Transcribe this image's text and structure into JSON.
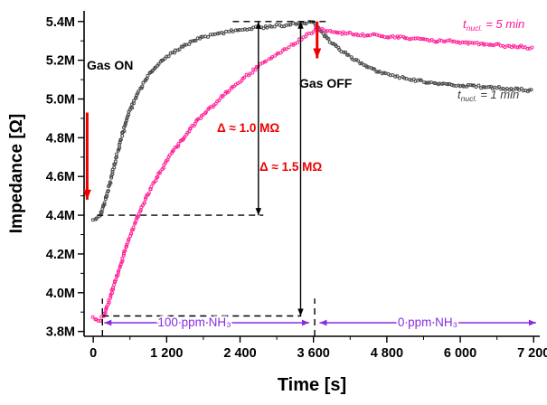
{
  "chart_data": {
    "type": "scatter",
    "title": "",
    "xlabel": "Time [s]",
    "ylabel": "Impedance [Ω]",
    "xlim": [
      -150,
      7300
    ],
    "ylim": [
      3.775,
      5.455
    ],
    "y_unit": "MΩ",
    "grid": false,
    "legend_position": "inline-right",
    "x_ticks": [
      {
        "v": 0,
        "label": "0"
      },
      {
        "v": 1200,
        "label": "1 200"
      },
      {
        "v": 2400,
        "label": "2 400"
      },
      {
        "v": 3600,
        "label": "3 600"
      },
      {
        "v": 4800,
        "label": "4 800"
      },
      {
        "v": 6000,
        "label": "6 000"
      },
      {
        "v": 7200,
        "label": "7 200"
      }
    ],
    "y_ticks": [
      {
        "v": 3.8,
        "label": "3.8M"
      },
      {
        "v": 4.0,
        "label": "4.0M"
      },
      {
        "v": 4.2,
        "label": "4.2M"
      },
      {
        "v": 4.4,
        "label": "4.4M"
      },
      {
        "v": 4.6,
        "label": "4.6M"
      },
      {
        "v": 4.8,
        "label": "4.8M"
      },
      {
        "v": 5.0,
        "label": "5.0M"
      },
      {
        "v": 5.2,
        "label": "5.2M"
      },
      {
        "v": 5.4,
        "label": "5.4M"
      }
    ],
    "x_minor_step": 600,
    "y_minor_step": 0.1,
    "series": [
      {
        "name": "t_nucl. = 1 min",
        "color": "#3b3b3b",
        "points": [
          [
            0,
            4.38
          ],
          [
            60,
            4.38
          ],
          [
            120,
            4.4
          ],
          [
            180,
            4.46
          ],
          [
            240,
            4.52
          ],
          [
            300,
            4.6
          ],
          [
            360,
            4.68
          ],
          [
            420,
            4.75
          ],
          [
            480,
            4.82
          ],
          [
            540,
            4.88
          ],
          [
            600,
            4.94
          ],
          [
            700,
            5.01
          ],
          [
            800,
            5.07
          ],
          [
            900,
            5.12
          ],
          [
            1000,
            5.16
          ],
          [
            1100,
            5.19
          ],
          [
            1200,
            5.22
          ],
          [
            1350,
            5.25
          ],
          [
            1500,
            5.28
          ],
          [
            1650,
            5.3
          ],
          [
            1800,
            5.32
          ],
          [
            1950,
            5.33
          ],
          [
            2100,
            5.34
          ],
          [
            2250,
            5.35
          ],
          [
            2400,
            5.36
          ],
          [
            2550,
            5.36
          ],
          [
            2700,
            5.37
          ],
          [
            2850,
            5.37
          ],
          [
            3000,
            5.38
          ],
          [
            3150,
            5.38
          ],
          [
            3300,
            5.39
          ],
          [
            3450,
            5.39
          ],
          [
            3600,
            5.4
          ],
          [
            3700,
            5.36
          ],
          [
            3800,
            5.32
          ],
          [
            3900,
            5.29
          ],
          [
            4000,
            5.26
          ],
          [
            4150,
            5.23
          ],
          [
            4300,
            5.2
          ],
          [
            4450,
            5.17
          ],
          [
            4600,
            5.15
          ],
          [
            4750,
            5.13
          ],
          [
            4900,
            5.12
          ],
          [
            5050,
            5.11
          ],
          [
            5200,
            5.1
          ],
          [
            5400,
            5.09
          ],
          [
            5600,
            5.08
          ],
          [
            5800,
            5.08
          ],
          [
            6000,
            5.07
          ],
          [
            6200,
            5.07
          ],
          [
            6400,
            5.06
          ],
          [
            6600,
            5.06
          ],
          [
            6800,
            5.05
          ],
          [
            7000,
            5.05
          ],
          [
            7200,
            5.04
          ]
        ]
      },
      {
        "name": "t_nucl. = 5 min",
        "color": "#ff1493",
        "points": [
          [
            0,
            3.87
          ],
          [
            60,
            3.86
          ],
          [
            120,
            3.86
          ],
          [
            180,
            3.89
          ],
          [
            240,
            3.94
          ],
          [
            300,
            4.0
          ],
          [
            360,
            4.06
          ],
          [
            420,
            4.12
          ],
          [
            480,
            4.18
          ],
          [
            540,
            4.24
          ],
          [
            600,
            4.29
          ],
          [
            660,
            4.34
          ],
          [
            720,
            4.39
          ],
          [
            780,
            4.43
          ],
          [
            840,
            4.47
          ],
          [
            900,
            4.51
          ],
          [
            960,
            4.55
          ],
          [
            1020,
            4.58
          ],
          [
            1080,
            4.62
          ],
          [
            1140,
            4.65
          ],
          [
            1200,
            4.68
          ],
          [
            1300,
            4.73
          ],
          [
            1400,
            4.77
          ],
          [
            1500,
            4.81
          ],
          [
            1600,
            4.85
          ],
          [
            1700,
            4.89
          ],
          [
            1800,
            4.92
          ],
          [
            1900,
            4.95
          ],
          [
            2000,
            4.98
          ],
          [
            2100,
            5.01
          ],
          [
            2200,
            5.04
          ],
          [
            2300,
            5.07
          ],
          [
            2400,
            5.09
          ],
          [
            2500,
            5.12
          ],
          [
            2600,
            5.14
          ],
          [
            2700,
            5.17
          ],
          [
            2800,
            5.19
          ],
          [
            2900,
            5.21
          ],
          [
            3000,
            5.23
          ],
          [
            3100,
            5.25
          ],
          [
            3200,
            5.27
          ],
          [
            3300,
            5.29
          ],
          [
            3400,
            5.31
          ],
          [
            3500,
            5.33
          ],
          [
            3600,
            5.35
          ],
          [
            3650,
            5.37
          ],
          [
            3700,
            5.36
          ],
          [
            3800,
            5.35
          ],
          [
            3900,
            5.35
          ],
          [
            4000,
            5.34
          ],
          [
            4200,
            5.34
          ],
          [
            4400,
            5.33
          ],
          [
            4600,
            5.33
          ],
          [
            4800,
            5.32
          ],
          [
            5000,
            5.32
          ],
          [
            5200,
            5.31
          ],
          [
            5400,
            5.31
          ],
          [
            5600,
            5.3
          ],
          [
            5800,
            5.3
          ],
          [
            6000,
            5.29
          ],
          [
            6200,
            5.29
          ],
          [
            6400,
            5.28
          ],
          [
            6600,
            5.28
          ],
          [
            6800,
            5.27
          ],
          [
            7000,
            5.27
          ],
          [
            7200,
            5.26
          ]
        ]
      }
    ],
    "guides": [
      {
        "type": "hline",
        "y": 5.4,
        "x1": 2280,
        "x2": 3800
      },
      {
        "type": "hline",
        "y": 4.4,
        "x1": 60,
        "x2": 2780
      },
      {
        "type": "hline",
        "y": 3.88,
        "x1": 150,
        "x2": 3400
      },
      {
        "type": "vline",
        "x": 150,
        "y1": 3.775,
        "y2": 3.97
      },
      {
        "type": "vline",
        "x": 3620,
        "y1": 3.775,
        "y2": 3.97
      },
      {
        "type": "varrow",
        "x": 2700,
        "y1": 4.4,
        "y2": 5.4,
        "color": "#000000",
        "heads": "both",
        "width": 1.4
      },
      {
        "type": "varrow",
        "x": 3390,
        "y1": 3.88,
        "y2": 5.4,
        "color": "#000000",
        "heads": "both",
        "width": 1.4
      },
      {
        "type": "varrow",
        "x": -100,
        "y1": 4.93,
        "y2": 4.48,
        "color": "#ee0000",
        "heads": "end",
        "width": 3
      },
      {
        "type": "varrow",
        "x": 3660,
        "y1": 5.4,
        "y2": 5.21,
        "color": "#ee0000",
        "heads": "end",
        "width": 3
      },
      {
        "type": "harrow",
        "y": 3.845,
        "x1": 180,
        "x2": 3530,
        "color": "#8A2BE2",
        "heads": "both",
        "width": 1.6
      },
      {
        "type": "harrow",
        "y": 3.845,
        "x1": 3700,
        "x2": 7240,
        "color": "#8A2BE2",
        "heads": "both",
        "width": 1.6
      }
    ],
    "annotations": {
      "gas_on": "Gas ON",
      "gas_off": "Gas OFF",
      "delta_small": "Δ ≈ 1.0 MΩ",
      "delta_large": "Δ ≈ 1.5 MΩ",
      "ppm_on": "100 ppm NH₃",
      "ppm_off": "0 ppm NH₃",
      "series_pink_label_t": "t",
      "series_pink_label_sub": "nucl.",
      "series_pink_label_rest": " = 5 min",
      "series_gray_label_t": "t",
      "series_gray_label_sub": "nucl.",
      "series_gray_label_rest": " = 1 min"
    },
    "colors": {
      "red": "#ee0000",
      "purple": "#8A2BE2",
      "pink": "#ff1493",
      "gray": "#3b3b3b",
      "axis": "#000000"
    }
  }
}
